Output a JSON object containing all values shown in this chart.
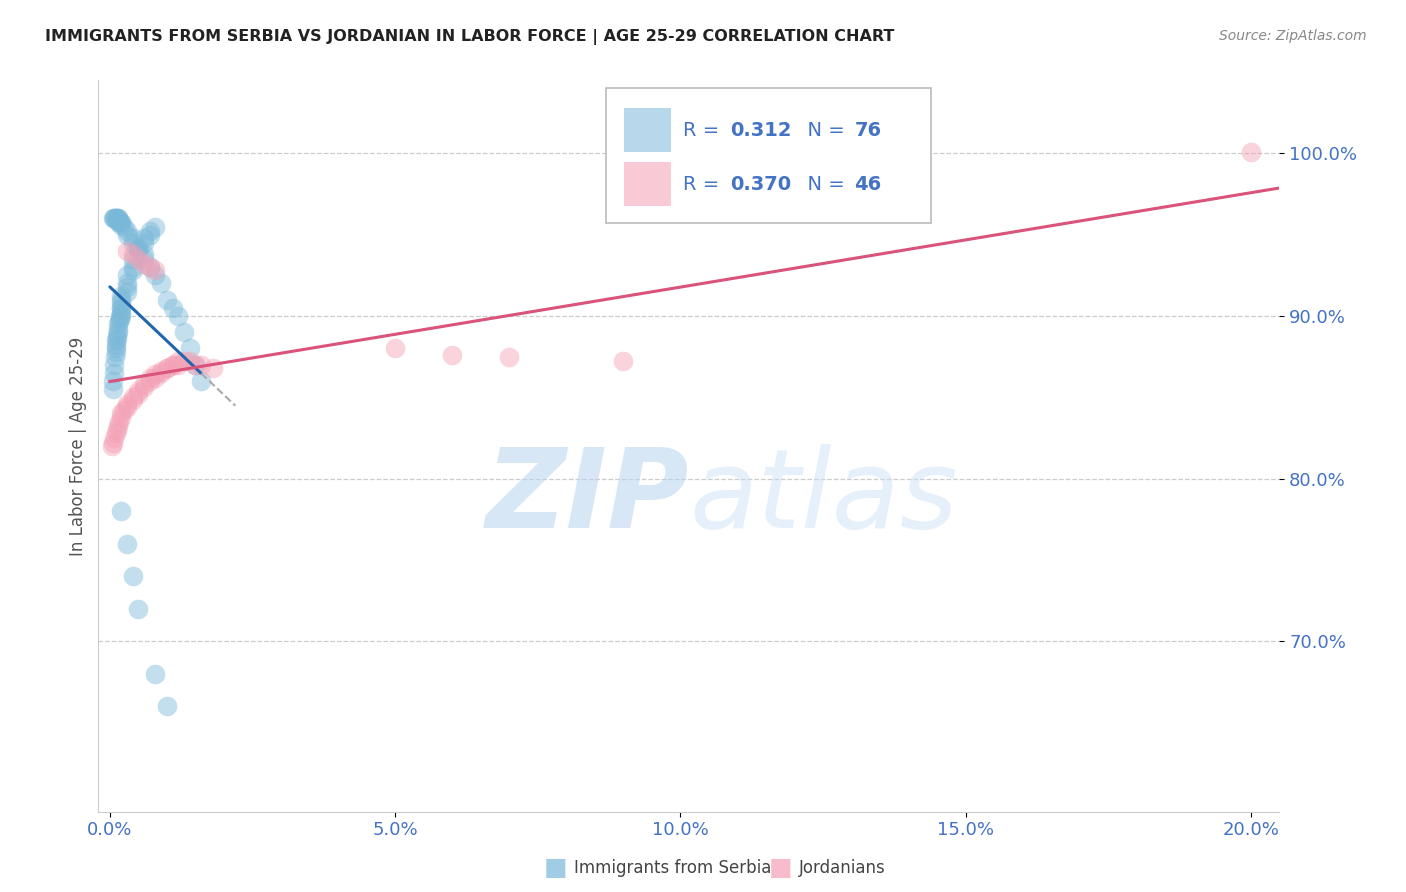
{
  "title": "IMMIGRANTS FROM SERBIA VS JORDANIAN IN LABOR FORCE | AGE 25-29 CORRELATION CHART",
  "source": "Source: ZipAtlas.com",
  "ylabel": "In Labor Force | Age 25-29",
  "xlim": [
    -0.002,
    0.205
  ],
  "ylim": [
    0.595,
    1.045
  ],
  "ytick_vals": [
    0.7,
    0.8,
    0.9,
    1.0
  ],
  "ytick_labels": [
    "70.0%",
    "80.0%",
    "90.0%",
    "100.0%"
  ],
  "xtick_vals": [
    0.0,
    0.05,
    0.1,
    0.15,
    0.2
  ],
  "xtick_labels": [
    "0.0%",
    "5.0%",
    "10.0%",
    "15.0%",
    "20.0%"
  ],
  "serbia_R": 0.312,
  "serbia_N": 76,
  "jordan_R": 0.37,
  "jordan_N": 46,
  "serbia_color": "#7ab8d9",
  "jordan_color": "#f4a0b5",
  "serbia_line_color": "#2166ac",
  "jordan_line_color": "#d9537a",
  "legend_label_serbia": "Immigrants from Serbia",
  "legend_label_jordan": "Jordanians",
  "watermark_zip": "ZIP",
  "watermark_atlas": "atlas",
  "bg_color": "#ffffff",
  "grid_color": "#cccccc",
  "tick_color": "#4472c4",
  "title_color": "#222222",
  "ylabel_color": "#555555",
  "source_color": "#888888",
  "serbia_x": [
    0.0005,
    0.0006,
    0.0007,
    0.0008,
    0.0009,
    0.001,
    0.001,
    0.001,
    0.001,
    0.0012,
    0.0013,
    0.0014,
    0.0015,
    0.0015,
    0.0016,
    0.0017,
    0.0018,
    0.002,
    0.002,
    0.002,
    0.002,
    0.002,
    0.002,
    0.002,
    0.003,
    0.003,
    0.003,
    0.003,
    0.004,
    0.004,
    0.004,
    0.005,
    0.005,
    0.006,
    0.006,
    0.007,
    0.007,
    0.008,
    0.0005,
    0.0007,
    0.0008,
    0.001,
    0.001,
    0.0012,
    0.0014,
    0.0015,
    0.0015,
    0.0016,
    0.0017,
    0.0018,
    0.002,
    0.002,
    0.0025,
    0.003,
    0.003,
    0.004,
    0.004,
    0.005,
    0.006,
    0.006,
    0.007,
    0.008,
    0.009,
    0.01,
    0.011,
    0.012,
    0.013,
    0.014,
    0.015,
    0.016,
    0.002,
    0.003,
    0.004,
    0.005,
    0.008,
    0.01
  ],
  "serbia_y": [
    0.855,
    0.86,
    0.865,
    0.87,
    0.875,
    0.878,
    0.88,
    0.882,
    0.885,
    0.886,
    0.888,
    0.89,
    0.892,
    0.895,
    0.897,
    0.898,
    0.9,
    0.9,
    0.902,
    0.905,
    0.905,
    0.908,
    0.91,
    0.912,
    0.915,
    0.918,
    0.92,
    0.925,
    0.928,
    0.93,
    0.935,
    0.94,
    0.942,
    0.945,
    0.948,
    0.95,
    0.952,
    0.955,
    0.96,
    0.96,
    0.96,
    0.96,
    0.96,
    0.96,
    0.96,
    0.96,
    0.958,
    0.958,
    0.958,
    0.958,
    0.958,
    0.956,
    0.955,
    0.952,
    0.95,
    0.948,
    0.945,
    0.942,
    0.938,
    0.935,
    0.93,
    0.925,
    0.92,
    0.91,
    0.905,
    0.9,
    0.89,
    0.88,
    0.87,
    0.86,
    0.78,
    0.76,
    0.74,
    0.72,
    0.68,
    0.66
  ],
  "jordan_x": [
    0.0004,
    0.0006,
    0.0008,
    0.001,
    0.0012,
    0.0014,
    0.0016,
    0.002,
    0.002,
    0.0025,
    0.003,
    0.003,
    0.004,
    0.004,
    0.005,
    0.005,
    0.006,
    0.006,
    0.007,
    0.007,
    0.008,
    0.008,
    0.009,
    0.009,
    0.01,
    0.01,
    0.011,
    0.011,
    0.012,
    0.012,
    0.013,
    0.014,
    0.015,
    0.016,
    0.018,
    0.003,
    0.004,
    0.005,
    0.006,
    0.007,
    0.008,
    0.05,
    0.06,
    0.07,
    0.09,
    0.2
  ],
  "jordan_y": [
    0.82,
    0.822,
    0.825,
    0.828,
    0.83,
    0.832,
    0.835,
    0.838,
    0.84,
    0.842,
    0.844,
    0.846,
    0.848,
    0.85,
    0.852,
    0.854,
    0.856,
    0.858,
    0.86,
    0.862,
    0.862,
    0.864,
    0.865,
    0.866,
    0.868,
    0.868,
    0.87,
    0.87,
    0.87,
    0.872,
    0.872,
    0.872,
    0.87,
    0.87,
    0.868,
    0.94,
    0.938,
    0.935,
    0.932,
    0.93,
    0.928,
    0.88,
    0.876,
    0.875,
    0.872,
    1.001
  ]
}
